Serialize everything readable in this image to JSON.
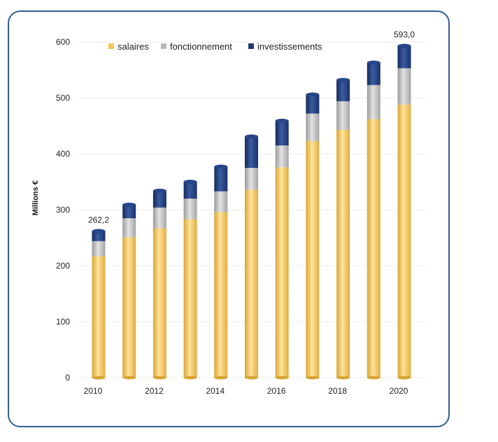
{
  "chart_data": {
    "type": "bar",
    "stacked": true,
    "ylabel": "Millions €",
    "ylim": [
      0,
      600
    ],
    "yticks": [
      0,
      100,
      200,
      300,
      400,
      500,
      600
    ],
    "categories": [
      "2010",
      "2011",
      "2012",
      "2013",
      "2014",
      "2015",
      "2016",
      "2017",
      "2018",
      "2019",
      "2020"
    ],
    "xtick_labels": [
      "2010",
      "",
      "2012",
      "",
      "2014",
      "",
      "2016",
      "",
      "2018",
      "",
      "2020"
    ],
    "series": [
      {
        "name": "salaires",
        "color": "#f5c558",
        "values": [
          217,
          251,
          267,
          283,
          296,
          336,
          376,
          423,
          443,
          462,
          488
        ]
      },
      {
        "name": "fonctionnement",
        "color": "#b8b8b8",
        "values": [
          27,
          34,
          37,
          37,
          37,
          39,
          39,
          49,
          51,
          61,
          65
        ]
      },
      {
        "name": "investissements",
        "color": "#1e3a78",
        "values": [
          18,
          24,
          30,
          30,
          44,
          56,
          44,
          34,
          38,
          40,
          40
        ]
      }
    ],
    "annotations": [
      {
        "category": "2010",
        "text": "262,2"
      },
      {
        "category": "2020",
        "text": "593,0"
      }
    ],
    "legend_position": "top",
    "grid": true
  }
}
